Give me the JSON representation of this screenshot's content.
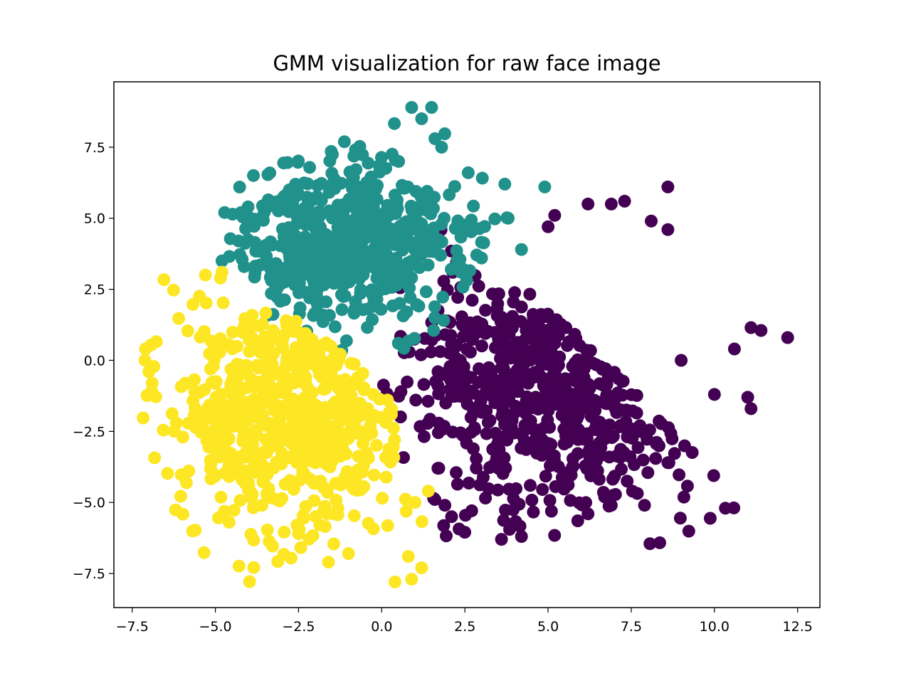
{
  "chart_data": {
    "type": "scatter",
    "title": "GMM visualization for raw face image",
    "xlabel": "",
    "ylabel": "",
    "xlim": [
      -8.05,
      13.17
    ],
    "ylim": [
      -8.7,
      9.8
    ],
    "xticks": [
      -7.5,
      -5.0,
      -2.5,
      0.0,
      2.5,
      5.0,
      7.5,
      10.0,
      12.5
    ],
    "xtick_labels": [
      "−7.5",
      "−5.0",
      "−2.5",
      "0.0",
      "2.5",
      "5.0",
      "7.5",
      "10.0",
      "12.5"
    ],
    "yticks": [
      -7.5,
      -5.0,
      -2.5,
      0.0,
      2.5,
      5.0,
      7.5
    ],
    "ytick_labels": [
      "−7.5",
      "−5.0",
      "−2.5",
      "0.0",
      "2.5",
      "5.0",
      "7.5"
    ],
    "grid": false,
    "legend": "none",
    "series": [
      {
        "color": "#440154",
        "generator": {
          "kind": "gaussian",
          "count": 650,
          "seed": 11,
          "center": [
            5.3,
            -0.6
          ],
          "spread": [
            2.3,
            2.3
          ],
          "clip_x": [
            -0.5,
            12.5
          ],
          "clip_y": [
            -6.5,
            6.3
          ],
          "half_plane": "right"
        },
        "extra_points": [
          [
            12.2,
            0.8
          ],
          [
            11.4,
            1.05
          ],
          [
            11.1,
            1.15
          ],
          [
            10.6,
            0.4
          ],
          [
            11.0,
            -1.3
          ],
          [
            11.1,
            -1.7
          ],
          [
            8.6,
            6.1
          ],
          [
            8.6,
            4.6
          ],
          [
            8.1,
            4.9
          ],
          [
            7.3,
            5.6
          ],
          [
            6.9,
            5.5
          ],
          [
            6.2,
            5.5
          ],
          [
            5.2,
            5.1
          ],
          [
            5.0,
            4.7
          ],
          [
            7.9,
            -5.1
          ],
          [
            8.6,
            -3.6
          ],
          [
            4.2,
            -6.2
          ],
          [
            3.6,
            -6.3
          ],
          [
            2.1,
            -5.5
          ],
          [
            6.2,
            -5.4
          ],
          [
            6.9,
            -5.1
          ],
          [
            1.9,
            -5.1
          ],
          [
            9.0,
            0.0
          ],
          [
            10.0,
            -1.2
          ]
        ]
      },
      {
        "color": "#21918c",
        "generator": {
          "kind": "gaussian",
          "count": 560,
          "seed": 23,
          "center": [
            -1.1,
            4.0
          ],
          "spread": [
            1.7,
            1.45
          ],
          "clip_x": [
            -4.8,
            5.2
          ],
          "clip_y": [
            0.3,
            8.5
          ],
          "half_plane": "top"
        },
        "extra_points": [
          [
            0.9,
            8.9
          ],
          [
            1.5,
            8.9
          ],
          [
            1.2,
            8.5
          ],
          [
            1.8,
            7.5
          ],
          [
            1.6,
            7.8
          ],
          [
            4.9,
            6.1
          ],
          [
            3.7,
            6.2
          ],
          [
            2.6,
            6.6
          ],
          [
            -4.8,
            3.5
          ],
          [
            -4.3,
            4.2
          ],
          [
            -1.2,
            0.35
          ],
          [
            0.5,
            0.6
          ],
          [
            4.2,
            3.9
          ],
          [
            3.0,
            3.6
          ],
          [
            3.8,
            5.0
          ]
        ]
      },
      {
        "color": "#fde725",
        "generator": {
          "kind": "gaussian",
          "count": 640,
          "seed": 37,
          "center": [
            -2.8,
            -1.7
          ],
          "spread": [
            1.75,
            2.2
          ],
          "clip_x": [
            -7.2,
            1.3
          ],
          "clip_y": [
            -7.8,
            3.2
          ],
          "half_plane": "left"
        },
        "extra_points": [
          [
            -7.1,
            0.4
          ],
          [
            -7.0,
            -0.4
          ],
          [
            -6.9,
            -0.8
          ],
          [
            0.4,
            -7.8
          ],
          [
            0.9,
            -7.7
          ],
          [
            1.2,
            -7.3
          ],
          [
            0.8,
            -6.9
          ],
          [
            -2.5,
            -6.1
          ],
          [
            -1.6,
            -7.1
          ],
          [
            -1.0,
            -6.8
          ],
          [
            -4.2,
            -4.2
          ],
          [
            -5.3,
            3.0
          ],
          [
            -4.8,
            3.1
          ],
          [
            1.0,
            -5.0
          ],
          [
            1.4,
            -4.6
          ]
        ]
      }
    ]
  }
}
